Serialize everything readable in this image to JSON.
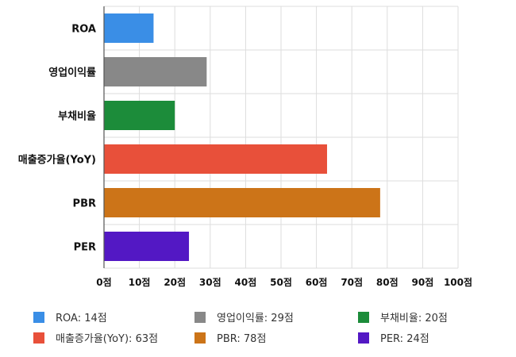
{
  "chart_data": {
    "type": "bar",
    "orientation": "horizontal",
    "title": "",
    "xlabel": "",
    "ylabel": "",
    "categories": [
      "ROA",
      "영업이익률",
      "부채비율",
      "매출증가율(YoY)",
      "PBR",
      "PER"
    ],
    "values": [
      14,
      29,
      20,
      63,
      78,
      24
    ],
    "colors": [
      "#3a8ee6",
      "#888888",
      "#1c8c3a",
      "#e8503a",
      "#cc7418",
      "#5318c4"
    ],
    "xlim": [
      0,
      100
    ],
    "xticks": [
      0,
      10,
      20,
      30,
      40,
      50,
      60,
      70,
      80,
      90,
      100
    ],
    "tick_suffix": "점",
    "tick_labels": [
      "0점",
      "10점",
      "20점",
      "30점",
      "40점",
      "50점",
      "60점",
      "70점",
      "80점",
      "90점",
      "100점"
    ],
    "grid": true,
    "legend_position": "bottom",
    "legend_labels": [
      "ROA: 14점",
      "영업이익률: 29점",
      "부채비율: 20점",
      "매출증가율(YoY): 63점",
      "PBR: 78점",
      "PER: 24점"
    ]
  }
}
